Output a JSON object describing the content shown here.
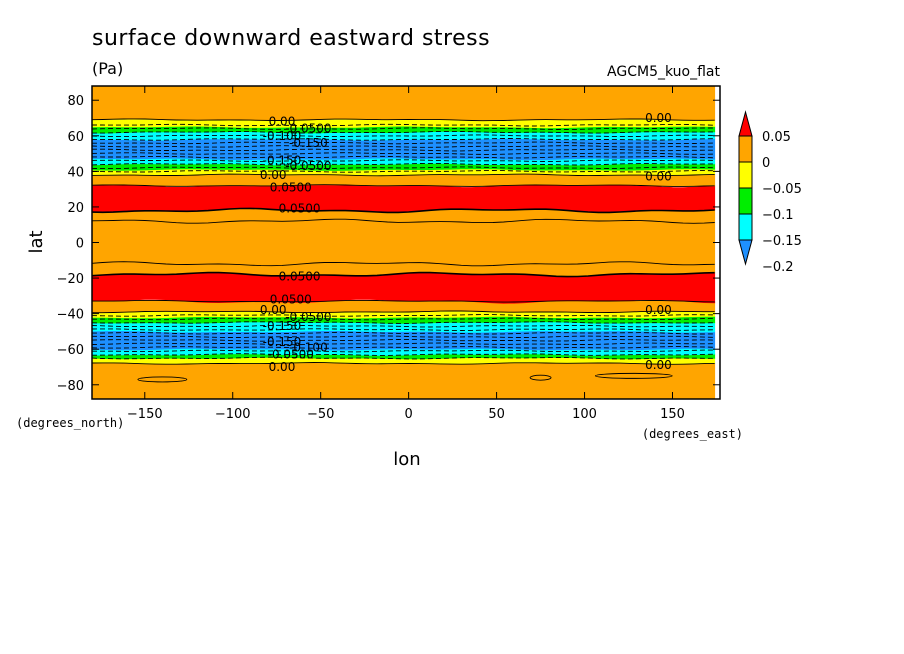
{
  "chart_data": {
    "type": "heatmap",
    "subtype": "filled-contour",
    "title": "surface downward eastward stress",
    "units": "(Pa)",
    "dataset": "AGCM5_kuo_flat",
    "xlabel": "lon",
    "ylabel": "lat",
    "xunits": "(degrees_east)",
    "yunits": "(degrees_north)",
    "xlim": [
      -180,
      177
    ],
    "ylim": [
      -88,
      88
    ],
    "xticks": [
      -150,
      -100,
      -50,
      0,
      50,
      100,
      150
    ],
    "yticks": [
      -80,
      -60,
      -40,
      -20,
      0,
      20,
      40,
      60,
      80
    ],
    "xtick_labels": [
      "−150",
      "−100",
      "−50",
      "0",
      "50",
      "100",
      "150"
    ],
    "ytick_labels": [
      "−80",
      "−60",
      "−40",
      "−20",
      "0",
      "20",
      "40",
      "60",
      "80"
    ],
    "colorbar": {
      "levels": [
        -0.2,
        -0.15,
        -0.1,
        -0.05,
        0,
        0.05
      ],
      "labels": [
        "−0.2",
        "−0.15",
        "−0.1",
        "−0.05",
        "0",
        "0.05"
      ],
      "colors": [
        "#1e90ff",
        "#00ffff",
        "#00ee00",
        "#ffff00",
        "#ffa500",
        "#ff0000"
      ],
      "extend": "both"
    },
    "bands": [
      {
        "lat_min": -88,
        "lat_max": -68,
        "color": "#ffa500"
      },
      {
        "lat_min": -68,
        "lat_max": -65,
        "color": "#ffff00"
      },
      {
        "lat_min": -65,
        "lat_max": -63,
        "color": "#00ee00"
      },
      {
        "lat_min": -63,
        "lat_max": -60,
        "color": "#00ffff"
      },
      {
        "lat_min": -60,
        "lat_max": -50,
        "color": "#1e90ff"
      },
      {
        "lat_min": -50,
        "lat_max": -45,
        "color": "#00ffff"
      },
      {
        "lat_min": -45,
        "lat_max": -42,
        "color": "#00ee00"
      },
      {
        "lat_min": -42,
        "lat_max": -39,
        "color": "#ffff00"
      },
      {
        "lat_min": -39,
        "lat_max": -33,
        "color": "#ffa500"
      },
      {
        "lat_min": -33,
        "lat_max": -18,
        "color": "#ff0000"
      },
      {
        "lat_min": -18,
        "lat_max": 18,
        "color": "#ffa500"
      },
      {
        "lat_min": 18,
        "lat_max": 32,
        "color": "#ff0000"
      },
      {
        "lat_min": 32,
        "lat_max": 38,
        "color": "#ffa500"
      },
      {
        "lat_min": 38,
        "lat_max": 41,
        "color": "#ffff00"
      },
      {
        "lat_min": 41,
        "lat_max": 44,
        "color": "#00ee00"
      },
      {
        "lat_min": 44,
        "lat_max": 47,
        "color": "#00ffff"
      },
      {
        "lat_min": 47,
        "lat_max": 58,
        "color": "#1e90ff"
      },
      {
        "lat_min": 58,
        "lat_max": 62,
        "color": "#00ffff"
      },
      {
        "lat_min": 62,
        "lat_max": 65,
        "color": "#00ee00"
      },
      {
        "lat_min": 65,
        "lat_max": 69,
        "color": "#ffff00"
      },
      {
        "lat_min": 69,
        "lat_max": 88,
        "color": "#ffa500"
      }
    ],
    "contours": [
      {
        "lat": -68,
        "dashed": false
      },
      {
        "lat": -65,
        "dashed": true
      },
      {
        "lat": -63,
        "dashed": true
      },
      {
        "lat": -61,
        "dashed": true
      },
      {
        "lat": -59,
        "dashed": true
      },
      {
        "lat": -57,
        "dashed": true
      },
      {
        "lat": -55,
        "dashed": true
      },
      {
        "lat": -53,
        "dashed": true
      },
      {
        "lat": -51,
        "dashed": true
      },
      {
        "lat": -49,
        "dashed": true
      },
      {
        "lat": -47,
        "dashed": true
      },
      {
        "lat": -45,
        "dashed": true
      },
      {
        "lat": -43,
        "dashed": true
      },
      {
        "lat": -41,
        "dashed": true
      },
      {
        "lat": -39,
        "dashed": false
      },
      {
        "lat": -33,
        "dashed": false
      },
      {
        "lat": -18,
        "dashed": false
      },
      {
        "lat": -12,
        "dashed": false
      },
      {
        "lat": 12,
        "dashed": false
      },
      {
        "lat": 18,
        "dashed": false
      },
      {
        "lat": 32,
        "dashed": false
      },
      {
        "lat": 38,
        "dashed": false
      },
      {
        "lat": 40,
        "dashed": true
      },
      {
        "lat": 42,
        "dashed": true
      },
      {
        "lat": 44,
        "dashed": true
      },
      {
        "lat": 46,
        "dashed": true
      },
      {
        "lat": 48,
        "dashed": true
      },
      {
        "lat": 50,
        "dashed": true
      },
      {
        "lat": 52,
        "dashed": true
      },
      {
        "lat": 54,
        "dashed": true
      },
      {
        "lat": 56,
        "dashed": true
      },
      {
        "lat": 58,
        "dashed": true
      },
      {
        "lat": 60,
        "dashed": true
      },
      {
        "lat": 62,
        "dashed": true
      },
      {
        "lat": 64,
        "dashed": true
      },
      {
        "lat": 66,
        "dashed": true
      },
      {
        "lat": 69,
        "dashed": false
      }
    ],
    "contour_labels": [
      {
        "text": "0.00",
        "lon": -72,
        "lat": 68
      },
      {
        "text": "-0.0500",
        "lon": -57,
        "lat": 64
      },
      {
        "text": "-0.100",
        "lon": -72,
        "lat": 60
      },
      {
        "text": "-0.150",
        "lon": -57,
        "lat": 56
      },
      {
        "text": "-0.150",
        "lon": -72,
        "lat": 46
      },
      {
        "text": "-0.0500",
        "lon": -57,
        "lat": 43
      },
      {
        "text": "0.00",
        "lon": -77,
        "lat": 38
      },
      {
        "text": "0.0500",
        "lon": -67,
        "lat": 31
      },
      {
        "text": "0.0500",
        "lon": -62,
        "lat": 19
      },
      {
        "text": "0.00",
        "lon": 142,
        "lat": 70
      },
      {
        "text": "0.00",
        "lon": 142,
        "lat": 37
      },
      {
        "text": "0.0500",
        "lon": -62,
        "lat": -19
      },
      {
        "text": "0.0500",
        "lon": -67,
        "lat": -32
      },
      {
        "text": "0.00",
        "lon": -77,
        "lat": -38
      },
      {
        "text": "-0.0500",
        "lon": -57,
        "lat": -42
      },
      {
        "text": "-0.150",
        "lon": -72,
        "lat": -47
      },
      {
        "text": "-0.150",
        "lon": -72,
        "lat": -56
      },
      {
        "text": "-0.100",
        "lon": -57,
        "lat": -59
      },
      {
        "text": "-0.0500",
        "lon": -67,
        "lat": -63
      },
      {
        "text": "0.00",
        "lon": -72,
        "lat": -70
      },
      {
        "text": "0.00",
        "lon": 142,
        "lat": -38
      },
      {
        "text": "0.00",
        "lon": 142,
        "lat": -69
      }
    ]
  }
}
